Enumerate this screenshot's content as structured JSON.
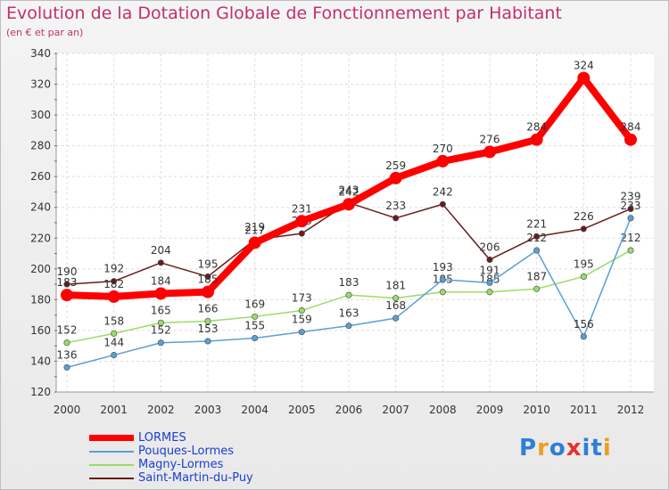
{
  "title": "Evolution de la Dotation Globale de Fonctionnement par Habitant",
  "subtitle": "(en € et par an)",
  "logo": {
    "text": "Proxiti",
    "colors": [
      "#2e7fd6",
      "#e8a020",
      "#2e7fd6",
      "#e83030",
      "#2e7fd6",
      "#2e7fd6",
      "#e8a020"
    ]
  },
  "chart_data": {
    "type": "line",
    "title": "Evolution de la Dotation Globale de Fonctionnement par Habitant",
    "subtitle": "(en € et par an)",
    "xlabel": "",
    "ylabel": "",
    "categories": [
      "2000",
      "2001",
      "2002",
      "2003",
      "2004",
      "2005",
      "2006",
      "2007",
      "2008",
      "2009",
      "2010",
      "2011",
      "2012"
    ],
    "ylim": [
      120,
      340
    ],
    "yticks": [
      "120",
      "140",
      "160",
      "180",
      "200",
      "220",
      "240",
      "260",
      "280",
      "300",
      "320",
      "340"
    ],
    "grid": true,
    "legend_position": "bottom-left",
    "series": [
      {
        "name": "Saint-Martin-du-Puy",
        "color": "#6b1a1a",
        "values": [
          190,
          192,
          204,
          195,
          219,
          223,
          243,
          233,
          242,
          206,
          221,
          226,
          239
        ]
      },
      {
        "name": "Magny-Lormes",
        "color": "#99dd66",
        "values": [
          152,
          158,
          165,
          166,
          169,
          173,
          183,
          181,
          185,
          185,
          187,
          195,
          212
        ]
      },
      {
        "name": "Pouques-Lormes",
        "color": "#5a9fd4",
        "values": [
          136,
          144,
          152,
          153,
          155,
          159,
          163,
          168,
          193,
          191,
          212,
          156,
          233
        ]
      },
      {
        "name": "LORMES",
        "color": "#ff0000",
        "values": [
          183,
          182,
          184,
          185,
          217,
          231,
          242,
          259,
          270,
          276,
          284,
          324,
          284
        ]
      }
    ],
    "legend_order": [
      "LORMES",
      "Pouques-Lormes",
      "Magny-Lormes",
      "Saint-Martin-du-Puy"
    ]
  }
}
